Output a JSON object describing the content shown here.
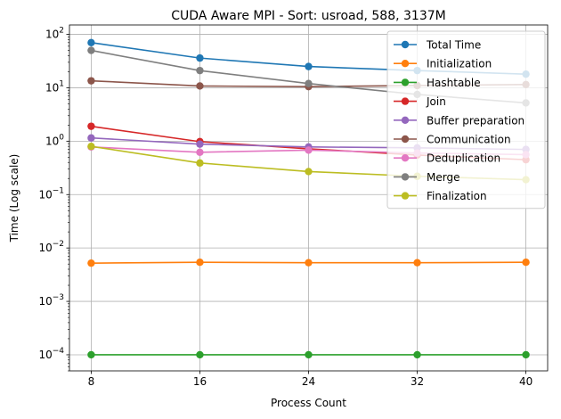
{
  "chart_data": {
    "type": "line",
    "title": "CUDA Aware MPI - Sort: usroad, 588, 3137M",
    "xlabel": "Process Count",
    "ylabel": "Time (Log scale)",
    "x": [
      8,
      16,
      24,
      32,
      40
    ],
    "x_tick_labels": [
      "8",
      "16",
      "24",
      "32",
      "40"
    ],
    "yscale": "log",
    "ylim": [
      5e-05,
      150
    ],
    "y_ticks": [
      {
        "value": 0.0001,
        "base": "10",
        "exp": "−4"
      },
      {
        "value": 0.001,
        "base": "10",
        "exp": "−3"
      },
      {
        "value": 0.01,
        "base": "10",
        "exp": "−2"
      },
      {
        "value": 0.1,
        "base": "10",
        "exp": "−1"
      },
      {
        "value": 1,
        "base": "10",
        "exp": "0"
      },
      {
        "value": 10,
        "base": "10",
        "exp": "1"
      },
      {
        "value": 100,
        "base": "10",
        "exp": "2"
      }
    ],
    "grid": true,
    "legend_position": "top-right",
    "series": [
      {
        "name": "Total Time",
        "color": "#1f77b4",
        "values": [
          70,
          36,
          25,
          21,
          18
        ]
      },
      {
        "name": "Initialization",
        "color": "#ff7f0e",
        "values": [
          0.0052,
          0.0054,
          0.0053,
          0.0053,
          0.0054
        ]
      },
      {
        "name": "Hashtable",
        "color": "#2ca02c",
        "values": [
          0.0001,
          0.0001,
          0.0001,
          0.0001,
          0.0001
        ]
      },
      {
        "name": "Join",
        "color": "#d62728",
        "values": [
          1.9,
          0.98,
          0.72,
          0.55,
          0.45
        ]
      },
      {
        "name": "Buffer preparation",
        "color": "#9467bd",
        "values": [
          1.15,
          0.88,
          0.78,
          0.75,
          0.7
        ]
      },
      {
        "name": "Communication",
        "color": "#8c564b",
        "values": [
          13.5,
          10.8,
          10.5,
          11,
          11.5
        ]
      },
      {
        "name": "Deduplication",
        "color": "#e377c2",
        "values": [
          0.78,
          0.62,
          0.68,
          0.6,
          0.56
        ]
      },
      {
        "name": "Merge",
        "color": "#7f7f7f",
        "values": [
          50,
          21,
          12,
          7.5,
          5.2
        ]
      },
      {
        "name": "Finalization",
        "color": "#bcbd22",
        "values": [
          0.8,
          0.39,
          0.27,
          0.22,
          0.19
        ]
      }
    ]
  }
}
